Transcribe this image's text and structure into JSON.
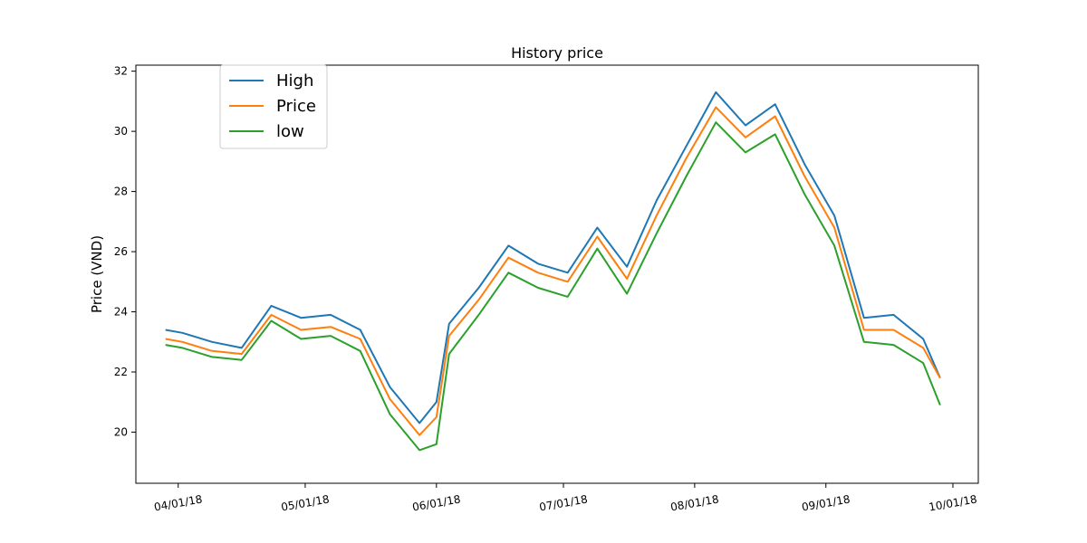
{
  "chart_data": {
    "type": "line",
    "title": "History price",
    "xlabel": "",
    "ylabel": "Price (VND)",
    "x_ticks": [
      "04/01/18",
      "05/01/18",
      "06/01/18",
      "07/01/18",
      "08/01/18",
      "09/01/18",
      "10/01/18"
    ],
    "x_tick_dates": [
      "2018-04-01",
      "2018-05-01",
      "2018-06-01",
      "2018-07-01",
      "2018-08-01",
      "2018-09-01",
      "2018-10-01"
    ],
    "x_range": [
      "2018-03-22",
      "2018-10-07"
    ],
    "y_ticks": [
      20,
      22,
      24,
      26,
      28,
      30,
      32
    ],
    "ylim": [
      18.3,
      32.2
    ],
    "legend_position": "upper-left",
    "grid": false,
    "dates": [
      "2018-03-29",
      "2018-04-02",
      "2018-04-09",
      "2018-04-16",
      "2018-04-23",
      "2018-04-30",
      "2018-05-07",
      "2018-05-14",
      "2018-05-21",
      "2018-05-28",
      "2018-06-01",
      "2018-06-04",
      "2018-06-11",
      "2018-06-18",
      "2018-06-25",
      "2018-07-02",
      "2018-07-09",
      "2018-07-16",
      "2018-07-23",
      "2018-07-30",
      "2018-08-06",
      "2018-08-13",
      "2018-08-20",
      "2018-08-27",
      "2018-09-03",
      "2018-09-10",
      "2018-09-17",
      "2018-09-24",
      "2018-09-28"
    ],
    "series": [
      {
        "name": "High",
        "color": "#1f77b4",
        "values": [
          23.4,
          23.3,
          23.0,
          22.8,
          24.2,
          23.8,
          23.9,
          23.4,
          21.5,
          20.3,
          21.0,
          23.6,
          24.8,
          26.2,
          25.6,
          25.3,
          26.8,
          25.5,
          27.7,
          29.5,
          31.3,
          30.2,
          30.9,
          28.9,
          27.2,
          23.8,
          23.9,
          23.1,
          21.8
        ]
      },
      {
        "name": "Price",
        "color": "#ff7f0e",
        "values": [
          23.1,
          23.0,
          22.7,
          22.6,
          23.9,
          23.4,
          23.5,
          23.1,
          21.1,
          19.9,
          20.5,
          23.2,
          24.4,
          25.8,
          25.3,
          25.0,
          26.5,
          25.1,
          27.2,
          29.1,
          30.8,
          29.8,
          30.5,
          28.5,
          26.8,
          23.4,
          23.4,
          22.8,
          21.8
        ]
      },
      {
        "name": "low",
        "color": "#2ca02c",
        "values": [
          22.9,
          22.8,
          22.5,
          22.4,
          23.7,
          23.1,
          23.2,
          22.7,
          20.6,
          19.4,
          19.6,
          22.6,
          23.9,
          25.3,
          24.8,
          24.5,
          26.1,
          24.6,
          26.6,
          28.5,
          30.3,
          29.3,
          29.9,
          27.9,
          26.2,
          23.0,
          22.9,
          22.3,
          20.9
        ]
      }
    ]
  }
}
